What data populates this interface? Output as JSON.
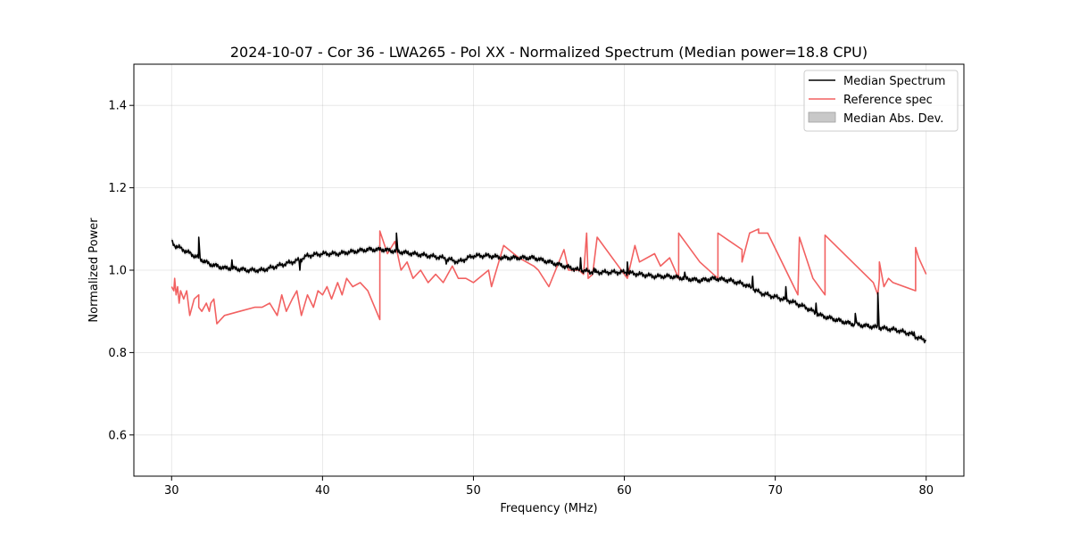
{
  "chart_data": {
    "type": "line",
    "title": "2024-10-07 - Cor 36 - LWA265 - Pol XX - Normalized Spectrum (Median power=18.8 CPU)",
    "xlabel": "Frequency (MHz)",
    "ylabel": "Normalized Power",
    "xlim": [
      27.5,
      82.5
    ],
    "ylim": [
      0.5,
      1.5
    ],
    "xticks": [
      30,
      40,
      50,
      60,
      70,
      80
    ],
    "yticks": [
      0.6,
      0.8,
      1.0,
      1.2,
      1.4
    ],
    "xtick_labels": [
      "30",
      "40",
      "50",
      "60",
      "70",
      "80"
    ],
    "ytick_labels": [
      "0.6",
      "0.8",
      "1.0",
      "1.2",
      "1.4"
    ],
    "grid": true,
    "legend_position": "top-right",
    "legend": [
      "Median Spectrum",
      "Reference spec",
      "Median Abs. Dev."
    ],
    "colors": {
      "median": "#000000",
      "reference": "#f26161",
      "mad": "#c8c8c8"
    },
    "series": [
      {
        "name": "Median Spectrum",
        "mad": 0.006,
        "x": [
          30.0,
          30.2,
          30.5,
          31.0,
          31.5,
          31.8,
          32.0,
          32.5,
          33.0,
          33.5,
          34.0,
          35.0,
          36.0,
          37.0,
          38.0,
          38.5,
          39.0,
          40.0,
          41.0,
          42.0,
          43.0,
          44.0,
          45.0,
          46.0,
          47.0,
          48.0,
          48.5,
          49.0,
          50.0,
          51.0,
          52.0,
          53.0,
          54.0,
          55.0,
          56.0,
          57.0,
          58.0,
          59.0,
          60.0,
          61.0,
          62.0,
          63.0,
          64.0,
          65.0,
          66.0,
          67.0,
          68.0,
          68.5,
          69.0,
          70.0,
          71.0,
          72.0,
          73.0,
          74.0,
          75.0,
          76.0,
          77.0,
          78.0,
          79.0,
          79.5,
          80.0
        ],
        "y": [
          1.07,
          1.06,
          1.055,
          1.045,
          1.035,
          1.03,
          1.025,
          1.015,
          1.01,
          1.005,
          1.005,
          1.0,
          1.0,
          1.01,
          1.02,
          1.025,
          1.035,
          1.04,
          1.04,
          1.045,
          1.05,
          1.05,
          1.045,
          1.04,
          1.035,
          1.03,
          1.025,
          1.02,
          1.035,
          1.035,
          1.03,
          1.03,
          1.03,
          1.02,
          1.01,
          1.0,
          0.995,
          0.995,
          0.995,
          0.99,
          0.985,
          0.985,
          0.98,
          0.975,
          0.98,
          0.975,
          0.965,
          0.955,
          0.945,
          0.935,
          0.925,
          0.91,
          0.89,
          0.88,
          0.87,
          0.865,
          0.86,
          0.855,
          0.845,
          0.835,
          0.83
        ],
        "spikes": [
          {
            "x": 31.8,
            "y": 1.08
          },
          {
            "x": 34.0,
            "y": 1.025
          },
          {
            "x": 38.5,
            "y": 1.0
          },
          {
            "x": 44.9,
            "y": 1.09
          },
          {
            "x": 48.2,
            "y": 1.015
          },
          {
            "x": 57.1,
            "y": 1.03
          },
          {
            "x": 58.0,
            "y": 1.005
          },
          {
            "x": 60.2,
            "y": 1.02
          },
          {
            "x": 64.0,
            "y": 0.995
          },
          {
            "x": 68.5,
            "y": 0.985
          },
          {
            "x": 70.7,
            "y": 0.96
          },
          {
            "x": 72.7,
            "y": 0.92
          },
          {
            "x": 75.3,
            "y": 0.895
          },
          {
            "x": 76.8,
            "y": 0.945
          },
          {
            "x": 79.2,
            "y": 0.85
          }
        ]
      },
      {
        "name": "Reference spec",
        "x": [
          30.0,
          30.15,
          30.2,
          30.3,
          30.4,
          30.5,
          30.6,
          30.8,
          31.0,
          31.2,
          31.5,
          31.8,
          31.8,
          32.0,
          32.3,
          32.5,
          32.6,
          32.8,
          33.0,
          33.5,
          34.5,
          35.5,
          36.0,
          36.5,
          37.0,
          37.3,
          37.6,
          38.0,
          38.3,
          38.6,
          39.0,
          39.4,
          39.7,
          40.0,
          40.3,
          40.6,
          41.0,
          41.3,
          41.6,
          42.0,
          42.5,
          43.0,
          43.8,
          43.8,
          44.3,
          44.8,
          45.2,
          45.6,
          46.0,
          46.5,
          47.0,
          47.5,
          48.0,
          48.3,
          48.6,
          49.0,
          49.5,
          50.0,
          51.0,
          51.2,
          52.0,
          53.0,
          54.0,
          54.3,
          55.0,
          56.0,
          56.3,
          57.0,
          57.3,
          57.5,
          57.6,
          57.9,
          58.2,
          60.2,
          60.7,
          61.0,
          62.0,
          62.4,
          63.0,
          63.6,
          63.6,
          64.0,
          65.0,
          65.0,
          66.2,
          66.2,
          67.0,
          67.8,
          67.8,
          68.3,
          68.9,
          68.9,
          69.5,
          71.5,
          71.6,
          72.5,
          73.3,
          73.3,
          76.5,
          76.8,
          76.9,
          76.9,
          77.2,
          77.5,
          77.8,
          79.3,
          79.3,
          79.5,
          80.0
        ],
        "y": [
          0.96,
          0.95,
          0.98,
          0.94,
          0.96,
          0.92,
          0.95,
          0.93,
          0.95,
          0.89,
          0.93,
          0.94,
          0.91,
          0.9,
          0.92,
          0.9,
          0.92,
          0.93,
          0.87,
          0.89,
          0.9,
          0.91,
          0.91,
          0.92,
          0.89,
          0.94,
          0.9,
          0.93,
          0.95,
          0.89,
          0.94,
          0.91,
          0.95,
          0.94,
          0.96,
          0.93,
          0.97,
          0.94,
          0.98,
          0.96,
          0.97,
          0.95,
          0.88,
          1.095,
          1.04,
          1.07,
          1.0,
          1.02,
          0.98,
          1.0,
          0.97,
          0.99,
          0.97,
          0.99,
          1.01,
          0.98,
          0.98,
          0.97,
          1.0,
          0.96,
          1.06,
          1.03,
          1.01,
          1.0,
          0.96,
          1.05,
          1.0,
          1.0,
          0.99,
          1.09,
          0.98,
          0.99,
          1.08,
          0.98,
          1.06,
          1.02,
          1.04,
          1.01,
          1.03,
          0.98,
          1.09,
          1.07,
          1.02,
          1.02,
          0.98,
          1.09,
          1.07,
          1.05,
          1.02,
          1.09,
          1.1,
          1.09,
          1.09,
          0.94,
          1.08,
          0.98,
          0.94,
          1.085,
          0.97,
          0.94,
          0.98,
          1.02,
          0.96,
          0.98,
          0.97,
          0.95,
          1.055,
          1.03,
          0.99
        ]
      }
    ]
  }
}
